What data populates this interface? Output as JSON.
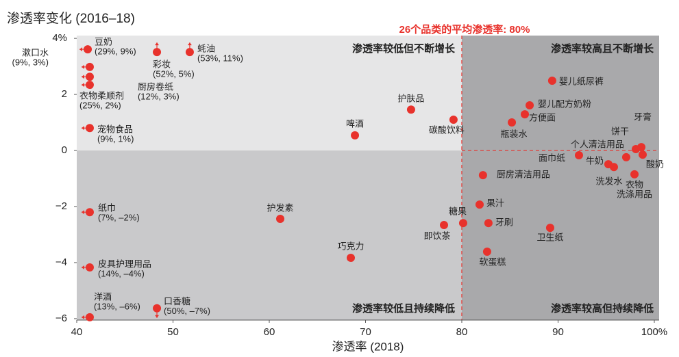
{
  "chart_data": {
    "type": "scatter",
    "title": "渗透率变化 (2016–18)",
    "x_label": "渗透率 (2018)",
    "annotation": "26个品类的平均渗透率: 80%",
    "quadrant_labels": [
      "渗透率较低但不断增长",
      "渗透率较高且不断增长",
      "渗透率较低且持续降低",
      "渗透率较高但持续降低"
    ],
    "quadrant_colors": [
      "#e6e6e7",
      "#a9a9ab",
      "#c9c9cb",
      "#a9a9ab"
    ],
    "reference_x": 80,
    "reference_y": 0,
    "reference_color": "#e8322c",
    "color": "#e8322c",
    "xlim": [
      40,
      100.5
    ],
    "ylim": [
      -6.05,
      4.1
    ],
    "xticks": [
      40,
      50,
      60,
      70,
      80,
      90,
      {
        "value": 100,
        "label": "100%"
      }
    ],
    "yticks": [
      {
        "value": 4,
        "label": "4%"
      },
      2,
      0,
      {
        "value": -2,
        "label": "−2"
      },
      {
        "value": -4,
        "label": "−4"
      },
      {
        "value": -6,
        "label": "−6"
      }
    ],
    "points": [
      {
        "label": [
          "豆奶",
          "(29%, 9%)"
        ],
        "x": 41.14,
        "y": 3.61,
        "arrow": "left"
      },
      {
        "label": [
          "漱口水",
          "(9%, 3%)"
        ],
        "x": 41.35,
        "y": 2.98,
        "arrow": "left"
      },
      {
        "label": [
          "厨房卷纸",
          "(12%, 3%)"
        ],
        "x": 41.35,
        "y": 2.63,
        "arrow": "left"
      },
      {
        "label": [
          "衣物柔顺剂",
          "(25%, 2%)"
        ],
        "x": 41.35,
        "y": 2.34,
        "arrow": "left"
      },
      {
        "label": [
          "宠物食品",
          "(9%, 1%)"
        ],
        "x": 41.35,
        "y": 0.8,
        "arrow": "left"
      },
      {
        "label": [
          "彩妆",
          "(52%, 5%)"
        ],
        "x": 48.33,
        "y": 3.51,
        "arrow": "up"
      },
      {
        "label": [
          "蚝油",
          "(53%, 11%)"
        ],
        "x": 51.74,
        "y": 3.51,
        "arrow": "up"
      },
      {
        "label": [
          "啤酒"
        ],
        "x": 68.9,
        "y": 0.54
      },
      {
        "label": [
          "护肤品"
        ],
        "x": 74.73,
        "y": 1.46
      },
      {
        "label": [
          "碳酸饮料"
        ],
        "x": 79.14,
        "y": 1.1
      },
      {
        "label": [
          "婴儿纸尿裤"
        ],
        "x": 89.39,
        "y": 2.49
      },
      {
        "label": [
          "婴儿配方奶粉"
        ],
        "x": 87.05,
        "y": 1.61
      },
      {
        "label": [
          "方便面"
        ],
        "x": 86.55,
        "y": 1.29
      },
      {
        "label": [
          "瓶装水"
        ],
        "x": 85.2,
        "y": 1.0
      },
      {
        "label": [
          "饼干"
        ],
        "x": 98.08,
        "y": 0.05
      },
      {
        "label": [
          "牙膏"
        ],
        "x": 98.65,
        "y": 0.12
      },
      {
        "label": [
          "个人清洁用品"
        ],
        "x": 97.08,
        "y": -0.24
      },
      {
        "label": [
          "酸奶"
        ],
        "x": 98.79,
        "y": -0.15
      },
      {
        "label": [
          "面巾纸"
        ],
        "x": 92.17,
        "y": -0.17
      },
      {
        "label": [
          "牛奶"
        ],
        "x": 95.23,
        "y": -0.49
      },
      {
        "label": [
          "洗发水"
        ],
        "x": 95.8,
        "y": -0.59
      },
      {
        "label": [
          "衣物",
          "洗涤用品"
        ],
        "x": 97.94,
        "y": -0.85
      },
      {
        "label": [
          "厨房清洁用品"
        ],
        "x": 82.2,
        "y": -0.88
      },
      {
        "label": [
          "果汁"
        ],
        "x": 81.85,
        "y": -1.93
      },
      {
        "label": [
          "牙刷"
        ],
        "x": 82.77,
        "y": -2.59
      },
      {
        "label": [
          "卫生纸"
        ],
        "x": 89.18,
        "y": -2.76
      },
      {
        "label": [
          "软蛋糕"
        ],
        "x": 82.63,
        "y": -3.61
      },
      {
        "label": [
          "糖果"
        ],
        "x": 80.14,
        "y": -2.59
      },
      {
        "label": [
          "即饮茶"
        ],
        "x": 78.15,
        "y": -2.66
      },
      {
        "label": [
          "护发素"
        ],
        "x": 61.14,
        "y": -2.44
      },
      {
        "label": [
          "巧克力"
        ],
        "x": 68.47,
        "y": -3.83
      },
      {
        "label": [
          "纸巾",
          "(7%, –2%)"
        ],
        "x": 41.35,
        "y": -2.2,
        "arrow": "left"
      },
      {
        "label": [
          "皮具护理用品",
          "(14%, –4%)"
        ],
        "x": 41.35,
        "y": -4.17,
        "arrow": "left"
      },
      {
        "label": [
          "洋酒",
          "(13%, –6%)"
        ],
        "x": 41.35,
        "y": -5.95,
        "arrow": "left"
      },
      {
        "label": [
          "口香糖",
          "(50%, –7%)"
        ],
        "x": 48.33,
        "y": -5.63,
        "arrow": "down"
      }
    ]
  }
}
